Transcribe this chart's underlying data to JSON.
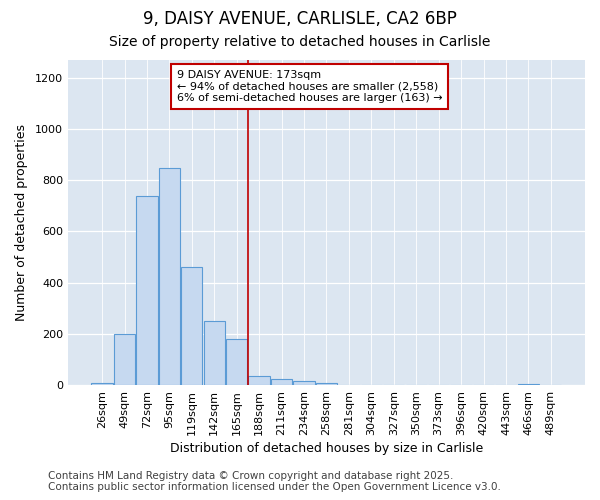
{
  "title": "9, DAISY AVENUE, CARLISLE, CA2 6BP",
  "subtitle": "Size of property relative to detached houses in Carlisle",
  "xlabel": "Distribution of detached houses by size in Carlisle",
  "ylabel": "Number of detached properties",
  "bins": [
    "26sqm",
    "49sqm",
    "72sqm",
    "95sqm",
    "119sqm",
    "142sqm",
    "165sqm",
    "188sqm",
    "211sqm",
    "234sqm",
    "258sqm",
    "281sqm",
    "304sqm",
    "327sqm",
    "350sqm",
    "373sqm",
    "396sqm",
    "420sqm",
    "443sqm",
    "466sqm",
    "489sqm"
  ],
  "values": [
    10,
    200,
    740,
    850,
    460,
    250,
    180,
    35,
    25,
    15,
    10,
    2,
    2,
    2,
    2,
    2,
    2,
    2,
    2,
    5,
    2
  ],
  "bar_color": "#c6d9f0",
  "bar_edge_color": "#5b9bd5",
  "vline_x": 6.5,
  "vline_color": "#c00000",
  "annotation_text": "9 DAISY AVENUE: 173sqm\n← 94% of detached houses are smaller (2,558)\n6% of semi-detached houses are larger (163) →",
  "annotation_box_facecolor": "#ffffff",
  "annotation_box_edgecolor": "#c00000",
  "ylim": [
    0,
    1270
  ],
  "yticks": [
    0,
    200,
    400,
    600,
    800,
    1000,
    1200
  ],
  "footer": "Contains HM Land Registry data © Crown copyright and database right 2025.\nContains public sector information licensed under the Open Government Licence v3.0.",
  "fig_bg_color": "#ffffff",
  "plot_bg_color": "#dce6f1",
  "title_fontsize": 12,
  "subtitle_fontsize": 10,
  "label_fontsize": 9,
  "tick_fontsize": 8,
  "annotation_fontsize": 8,
  "footer_fontsize": 7.5
}
